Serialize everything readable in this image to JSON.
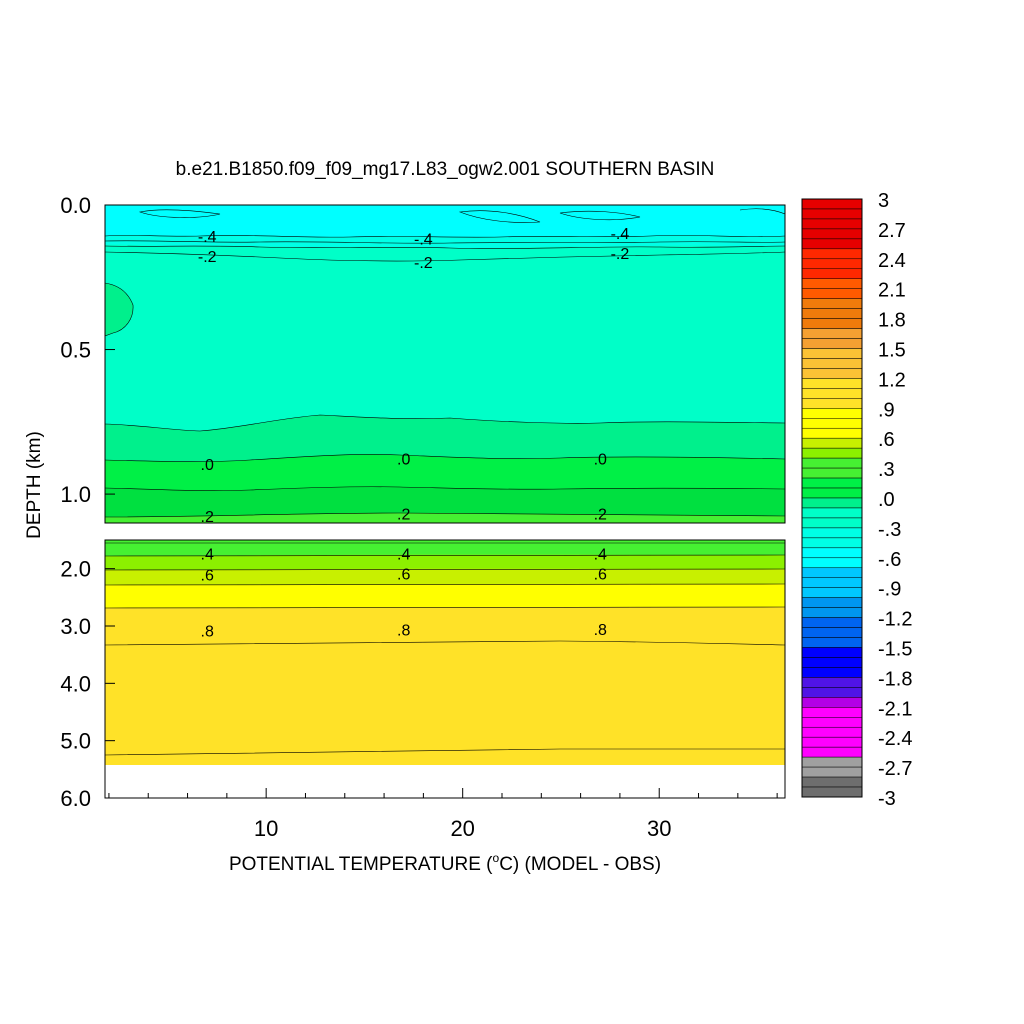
{
  "chart_data": {
    "type": "heatmap",
    "title": "b.e21.B1850.f09_f09_mg17.L83_ogw2.001 SOUTHERN BASIN",
    "xlabel": "POTENTIAL TEMPERATURE (",
    "xlabel_deg": "o",
    "xlabel_unit": "C) (MODEL - OBS)",
    "ylabel": "DEPTH (km)",
    "x_ticks": [
      "10",
      "20",
      "30"
    ],
    "x_tick_values": [
      10,
      20,
      30
    ],
    "xlim": [
      1.8,
      36.4
    ],
    "upper_panel": {
      "ylim": [
        0.0,
        1.1
      ],
      "y_ticks": [
        "0.0",
        "0.5",
        "1.0"
      ],
      "y_tick_values": [
        0.0,
        0.5,
        1.0
      ]
    },
    "lower_panel": {
      "ylim": [
        1.5,
        6.0
      ],
      "y_ticks": [
        "2.0",
        "3.0",
        "4.0",
        "5.0",
        "6.0"
      ],
      "y_tick_values": [
        2.0,
        3.0,
        4.0,
        5.0,
        6.0
      ]
    },
    "contour_labels": {
      "upper": [
        {
          "text": "-.4",
          "x": 7.0,
          "y": 0.11
        },
        {
          "text": "-.4",
          "x": 18.0,
          "y": 0.12
        },
        {
          "text": "-.4",
          "x": 28.0,
          "y": 0.1
        },
        {
          "text": "-.2",
          "x": 7.0,
          "y": 0.18
        },
        {
          "text": "-.2",
          "x": 18.0,
          "y": 0.2
        },
        {
          "text": "-.2",
          "x": 28.0,
          "y": 0.17
        },
        {
          "text": ".0",
          "x": 7.0,
          "y": 0.9
        },
        {
          "text": ".0",
          "x": 17.0,
          "y": 0.88
        },
        {
          "text": ".0",
          "x": 27.0,
          "y": 0.88
        },
        {
          "text": ".2",
          "x": 7.0,
          "y": 1.08
        },
        {
          "text": ".2",
          "x": 17.0,
          "y": 1.07
        },
        {
          "text": ".2",
          "x": 27.0,
          "y": 1.07
        }
      ],
      "lower": [
        {
          "text": ".4",
          "x": 7.0,
          "y": 1.75
        },
        {
          "text": ".4",
          "x": 17.0,
          "y": 1.75
        },
        {
          "text": ".4",
          "x": 27.0,
          "y": 1.75
        },
        {
          "text": ".6",
          "x": 7.0,
          "y": 2.12
        },
        {
          "text": ".6",
          "x": 17.0,
          "y": 2.1
        },
        {
          "text": ".6",
          "x": 27.0,
          "y": 2.1
        },
        {
          "text": ".8",
          "x": 7.0,
          "y": 3.1
        },
        {
          "text": ".8",
          "x": 17.0,
          "y": 3.08
        },
        {
          "text": ".8",
          "x": 27.0,
          "y": 3.07
        }
      ]
    },
    "colorbar": {
      "labels": [
        "3",
        "2.7",
        "2.4",
        "2.1",
        "1.8",
        "1.5",
        "1.2",
        ".9",
        ".6",
        ".3",
        ".0",
        "-.3",
        "-.6",
        "-.9",
        "-1.2",
        "-1.5",
        "-1.8",
        "-2.1",
        "-2.4",
        "-2.7",
        "-3"
      ],
      "label_values": [
        3,
        2.7,
        2.4,
        2.1,
        1.8,
        1.5,
        1.2,
        0.9,
        0.6,
        0.3,
        0.0,
        -0.3,
        -0.6,
        -0.9,
        -1.2,
        -1.5,
        -1.8,
        -2.1,
        -2.4,
        -2.7,
        -3
      ],
      "min": -3,
      "max": 3,
      "step": 0.1,
      "stops": [
        {
          "v": 3.0,
          "c": "#b40a0a"
        },
        {
          "v": 2.5,
          "c": "#e60000"
        },
        {
          "v": 2.2,
          "c": "#ff2800"
        },
        {
          "v": 2.0,
          "c": "#ff5a00"
        },
        {
          "v": 1.75,
          "c": "#f07b0b"
        },
        {
          "v": 1.5,
          "c": "#f5a032"
        },
        {
          "v": 1.2,
          "c": "#fbc235"
        },
        {
          "v": 0.9,
          "c": "#ffe228"
        },
        {
          "v": 0.65,
          "c": "#ffff00"
        },
        {
          "v": 0.5,
          "c": "#c8f000"
        },
        {
          "v": 0.4,
          "c": "#8cf000"
        },
        {
          "v": 0.2,
          "c": "#46f032"
        },
        {
          "v": 0.0,
          "c": "#00f046"
        },
        {
          "v": -0.1,
          "c": "#00f08c"
        },
        {
          "v": -0.3,
          "c": "#00ffc8"
        },
        {
          "v": -0.5,
          "c": "#00ffe6"
        },
        {
          "v": -0.7,
          "c": "#00ffff"
        },
        {
          "v": -0.95,
          "c": "#00c8ff"
        },
        {
          "v": -1.2,
          "c": "#0096f0"
        },
        {
          "v": -1.45,
          "c": "#0064f0"
        },
        {
          "v": -1.75,
          "c": "#0000ff"
        },
        {
          "v": -1.95,
          "c": "#5014e6"
        },
        {
          "v": -2.1,
          "c": "#b400e6"
        },
        {
          "v": -2.4,
          "c": "#ff00ff"
        },
        {
          "v": -2.55,
          "c": "#ff00ff"
        },
        {
          "v": -2.6,
          "c": "#dcdcdc"
        },
        {
          "v": -2.8,
          "c": "#a0a0a0"
        },
        {
          "v": -3.0,
          "c": "#6e6e6e"
        }
      ]
    },
    "colors": {
      "upper_cyan": "#00ffff",
      "upper_main": "#00ffc8",
      "upper_aqua": "#00f08c",
      "green": "#00f046",
      "green_light": "#46f032",
      "lime": "#8cf000",
      "yellow": "#ffff00",
      "gold": "#ffe228",
      "no_data": "#ffffff"
    }
  }
}
